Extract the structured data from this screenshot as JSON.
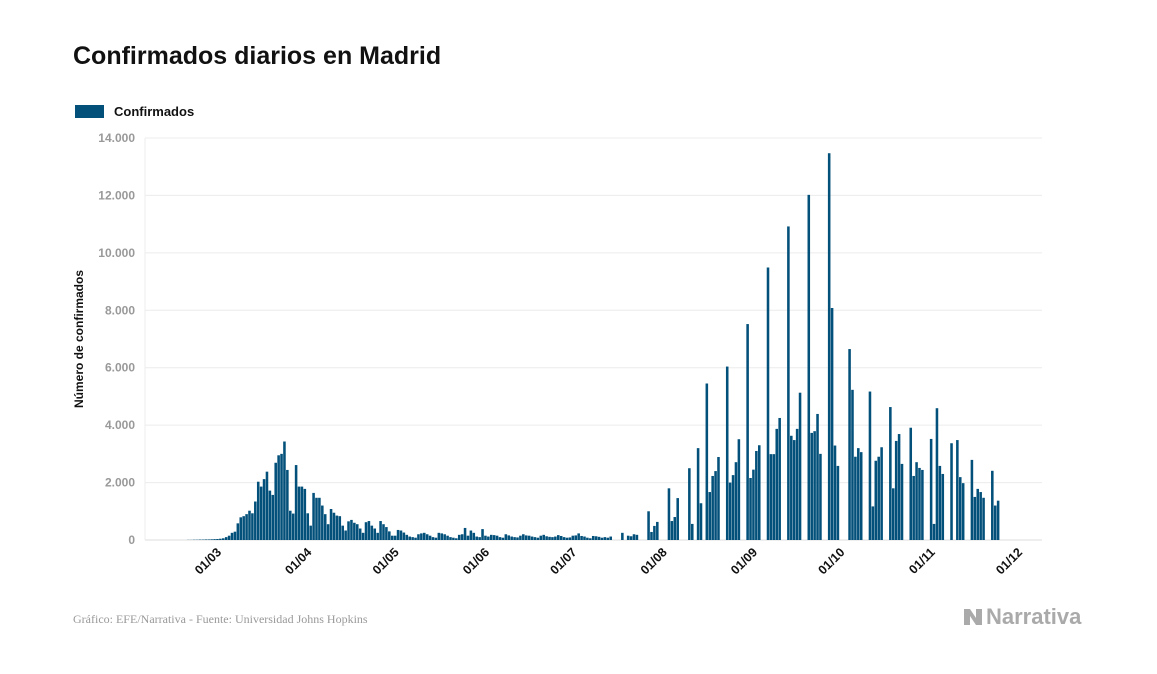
{
  "title": "Confirmados diarios en Madrid",
  "footer": "Gráfico: EFE/Narrativa - Fuente: Universidad Johns Hopkins",
  "logo": "Narrativa",
  "colors": {
    "bar": "#03507a",
    "grid": "#ececec",
    "tick": "#999999"
  },
  "chart_data": {
    "type": "bar",
    "title": "Confirmados diarios en Madrid",
    "xlabel": "",
    "ylabel": "Número de confirmados",
    "legend": [
      "Confirmados"
    ],
    "legend_position": "top-left",
    "grid": true,
    "ylim": [
      0,
      14000
    ],
    "y_ticks": [
      0,
      2000,
      4000,
      6000,
      8000,
      10000,
      12000,
      14000
    ],
    "y_tick_labels": [
      "0",
      "2.000",
      "4.000",
      "6.000",
      "8.000",
      "10.000",
      "12.000",
      "14.000"
    ],
    "first_day": "17/02",
    "x_ticks": [
      {
        "label": "01/03",
        "day": 12
      },
      {
        "label": "01/04",
        "day": 43
      },
      {
        "label": "01/05",
        "day": 73
      },
      {
        "label": "01/06",
        "day": 104
      },
      {
        "label": "01/07",
        "day": 134
      },
      {
        "label": "01/08",
        "day": 165
      },
      {
        "label": "01/09",
        "day": 196
      },
      {
        "label": "01/10",
        "day": 226
      },
      {
        "label": "01/11",
        "day": 257
      },
      {
        "label": "01/12",
        "day": 287
      }
    ],
    "xlim_days": [
      -27,
      295
    ],
    "series": [
      {
        "name": "Confirmados",
        "values": [
          5,
          5,
          10,
          10,
          15,
          15,
          20,
          20,
          25,
          30,
          35,
          45,
          60,
          100,
          150,
          250,
          290,
          580,
          790,
          830,
          900,
          1020,
          930,
          1340,
          2030,
          1860,
          2120,
          2380,
          1720,
          1570,
          2690,
          2950,
          3000,
          3430,
          2440,
          1020,
          920,
          2610,
          1860,
          1860,
          1780,
          930,
          500,
          1640,
          1470,
          1470,
          1200,
          900,
          550,
          1080,
          950,
          850,
          830,
          500,
          330,
          650,
          700,
          600,
          550,
          400,
          250,
          620,
          660,
          500,
          400,
          250,
          660,
          550,
          450,
          300,
          150,
          150,
          350,
          330,
          260,
          180,
          120,
          100,
          80,
          200,
          230,
          250,
          200,
          150,
          100,
          80,
          250,
          230,
          200,
          150,
          100,
          80,
          60,
          180,
          200,
          420,
          150,
          330,
          250,
          120,
          100,
          380,
          150,
          120,
          180,
          170,
          150,
          100,
          80,
          200,
          160,
          120,
          100,
          90,
          150,
          200,
          160,
          150,
          120,
          100,
          80,
          150,
          180,
          130,
          110,
          100,
          120,
          170,
          140,
          100,
          80,
          90,
          150,
          160,
          230,
          140,
          120,
          80,
          60,
          140,
          130,
          110,
          80,
          100,
          80,
          120,
          0,
          0,
          0,
          250,
          0,
          150,
          130,
          200,
          180,
          0,
          0,
          0,
          1000,
          280,
          490,
          630,
          0,
          0,
          0,
          1800,
          660,
          800,
          1460,
          0,
          0,
          0,
          2500,
          560,
          0,
          3200,
          1280,
          0,
          5450,
          1670,
          2230,
          2400,
          2890,
          0,
          0,
          6040,
          2000,
          2260,
          2710,
          3510,
          0,
          0,
          7520,
          2160,
          2450,
          3100,
          3300,
          0,
          0,
          9490,
          2990,
          2990,
          3870,
          4250,
          0,
          0,
          10920,
          3630,
          3480,
          3870,
          5130,
          0,
          0,
          12020,
          3730,
          3790,
          4390,
          3000,
          0,
          0,
          13470,
          8080,
          3290,
          2580,
          0,
          0,
          0,
          6650,
          5230,
          2900,
          3200,
          3060,
          0,
          0,
          5170,
          1170,
          2760,
          2900,
          3230,
          0,
          0,
          4630,
          1800,
          3450,
          3690,
          2650,
          0,
          0,
          3910,
          2230,
          2710,
          2510,
          2440,
          0,
          0,
          3520,
          560,
          4590,
          2580,
          2300,
          0,
          0,
          3370,
          0,
          3480,
          2190,
          1980,
          0,
          0,
          2790,
          1500,
          1780,
          1670,
          1470,
          0,
          0,
          2410,
          1200,
          1370
        ]
      }
    ]
  }
}
